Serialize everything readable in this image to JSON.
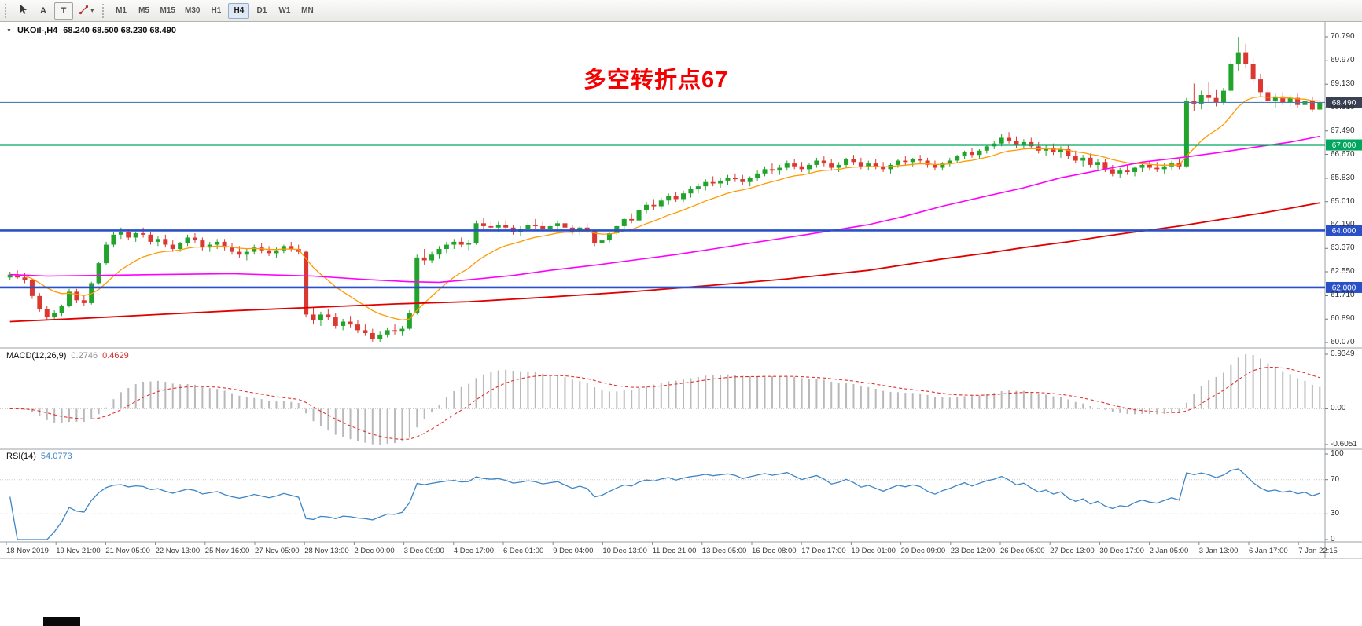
{
  "toolbar": {
    "tool_a_label": "A",
    "tool_t_label": "T",
    "timeframes": [
      "M1",
      "M5",
      "M15",
      "M30",
      "H1",
      "H4",
      "D1",
      "W1",
      "MN"
    ],
    "active_timeframe": "H4"
  },
  "icons": {
    "dropdown_caret": "▾",
    "symbol_marker": "▼"
  },
  "header": {
    "symbol_timeframe": "UKOil-,H4",
    "ohlc": "68.240 68.500 68.230 68.490"
  },
  "chart_data": {
    "type": "candlestick",
    "symbol": "UKOil-",
    "timeframe": "H4",
    "last_ohlc": {
      "open": 68.24,
      "high": 68.5,
      "low": 68.23,
      "close": 68.49
    },
    "price_axis": {
      "max": 70.79,
      "min": 60.07,
      "ticks": [
        "70.790",
        "69.970",
        "69.130",
        "68.310",
        "67.490",
        "66.670",
        "65.830",
        "65.010",
        "64.190",
        "63.370",
        "62.550",
        "61.710",
        "60.890",
        "60.070"
      ]
    },
    "time_axis": [
      "18 Nov 2019",
      "19 Nov 21:00",
      "21 Nov 05:00",
      "22 Nov 13:00",
      "25 Nov 16:00",
      "27 Nov 05:00",
      "28 Nov 13:00",
      "2 Dec 00:00",
      "3 Dec 09:00",
      "4 Dec 17:00",
      "6 Dec 01:00",
      "9 Dec 04:00",
      "10 Dec 13:00",
      "11 Dec 21:00",
      "13 Dec 05:00",
      "16 Dec 08:00",
      "17 Dec 17:00",
      "19 Dec 01:00",
      "20 Dec 09:00",
      "23 Dec 12:00",
      "26 Dec 05:00",
      "27 Dec 13:00",
      "30 Dec 17:00",
      "2 Jan 05:00",
      "3 Jan 13:00",
      "6 Jan 17:00",
      "7 Jan 22:15"
    ],
    "candles": [
      [
        62.35,
        62.55,
        62.25,
        62.45
      ],
      [
        62.45,
        62.6,
        62.3,
        62.35
      ],
      [
        62.35,
        62.5,
        62.15,
        62.25
      ],
      [
        62.25,
        62.3,
        61.6,
        61.7
      ],
      [
        61.7,
        61.8,
        61.15,
        61.25
      ],
      [
        61.25,
        61.35,
        60.85,
        60.95
      ],
      [
        60.95,
        61.2,
        60.85,
        61.1
      ],
      [
        61.1,
        61.4,
        61.0,
        61.35
      ],
      [
        61.35,
        61.95,
        61.3,
        61.85
      ],
      [
        61.85,
        61.95,
        61.45,
        61.55
      ],
      [
        61.55,
        61.7,
        61.35,
        61.45
      ],
      [
        61.45,
        62.2,
        61.4,
        62.15
      ],
      [
        62.15,
        62.9,
        62.1,
        62.85
      ],
      [
        62.85,
        63.6,
        62.8,
        63.5
      ],
      [
        63.5,
        63.95,
        63.4,
        63.85
      ],
      [
        63.85,
        64.1,
        63.7,
        63.95
      ],
      [
        63.95,
        64.05,
        63.65,
        63.75
      ],
      [
        63.75,
        63.95,
        63.6,
        63.9
      ],
      [
        63.9,
        64.1,
        63.75,
        63.85
      ],
      [
        63.85,
        63.95,
        63.5,
        63.6
      ],
      [
        63.6,
        63.8,
        63.45,
        63.7
      ],
      [
        63.7,
        63.85,
        63.4,
        63.5
      ],
      [
        63.5,
        63.65,
        63.25,
        63.35
      ],
      [
        63.35,
        63.6,
        63.25,
        63.55
      ],
      [
        63.55,
        63.85,
        63.45,
        63.75
      ],
      [
        63.75,
        63.9,
        63.55,
        63.65
      ],
      [
        63.65,
        63.75,
        63.3,
        63.4
      ],
      [
        63.4,
        63.6,
        63.25,
        63.5
      ],
      [
        63.5,
        63.7,
        63.35,
        63.6
      ],
      [
        63.6,
        63.7,
        63.3,
        63.4
      ],
      [
        63.4,
        63.55,
        63.15,
        63.25
      ],
      [
        63.25,
        63.45,
        63.05,
        63.15
      ],
      [
        63.15,
        63.35,
        62.95,
        63.25
      ],
      [
        63.25,
        63.5,
        63.15,
        63.4
      ],
      [
        63.4,
        63.55,
        63.2,
        63.3
      ],
      [
        63.3,
        63.45,
        63.1,
        63.2
      ],
      [
        63.2,
        63.4,
        63.05,
        63.3
      ],
      [
        63.3,
        63.5,
        63.2,
        63.45
      ],
      [
        63.45,
        63.6,
        63.25,
        63.35
      ],
      [
        63.35,
        63.5,
        63.15,
        63.25
      ],
      [
        63.25,
        63.3,
        60.95,
        61.05
      ],
      [
        61.05,
        61.3,
        60.7,
        60.85
      ],
      [
        60.85,
        61.15,
        60.65,
        61.05
      ],
      [
        61.05,
        61.25,
        60.85,
        60.95
      ],
      [
        60.95,
        61.1,
        60.55,
        60.65
      ],
      [
        60.65,
        60.9,
        60.5,
        60.8
      ],
      [
        60.8,
        61.0,
        60.6,
        60.7
      ],
      [
        60.7,
        60.85,
        60.4,
        60.5
      ],
      [
        60.5,
        60.7,
        60.3,
        60.4
      ],
      [
        60.4,
        60.55,
        60.1,
        60.2
      ],
      [
        60.2,
        60.45,
        60.08,
        60.35
      ],
      [
        60.35,
        60.6,
        60.25,
        60.5
      ],
      [
        60.5,
        60.7,
        60.35,
        60.45
      ],
      [
        60.45,
        60.65,
        60.3,
        60.55
      ],
      [
        60.55,
        61.2,
        60.5,
        61.1
      ],
      [
        61.1,
        63.15,
        61.05,
        63.05
      ],
      [
        63.05,
        63.35,
        62.8,
        62.95
      ],
      [
        62.95,
        63.25,
        62.85,
        63.15
      ],
      [
        63.15,
        63.45,
        63.0,
        63.35
      ],
      [
        63.35,
        63.6,
        63.2,
        63.5
      ],
      [
        63.5,
        63.7,
        63.35,
        63.6
      ],
      [
        63.6,
        63.75,
        63.4,
        63.5
      ],
      [
        63.5,
        63.65,
        63.3,
        63.55
      ],
      [
        63.55,
        64.35,
        63.5,
        64.25
      ],
      [
        64.25,
        64.45,
        64.05,
        64.15
      ],
      [
        64.15,
        64.3,
        63.95,
        64.1
      ],
      [
        64.1,
        64.3,
        63.95,
        64.2
      ],
      [
        64.2,
        64.35,
        64.0,
        64.1
      ],
      [
        64.1,
        64.2,
        63.85,
        63.95
      ],
      [
        63.95,
        64.15,
        63.8,
        64.05
      ],
      [
        64.05,
        64.3,
        63.95,
        64.2
      ],
      [
        64.2,
        64.4,
        64.05,
        64.15
      ],
      [
        64.15,
        64.3,
        63.95,
        64.05
      ],
      [
        64.05,
        64.25,
        63.9,
        64.15
      ],
      [
        64.15,
        64.35,
        64.0,
        64.25
      ],
      [
        64.25,
        64.4,
        64.05,
        64.1
      ],
      [
        64.1,
        64.2,
        63.85,
        63.95
      ],
      [
        63.95,
        64.15,
        63.85,
        64.1
      ],
      [
        64.1,
        64.25,
        63.9,
        64.0
      ],
      [
        64.0,
        64.05,
        63.45,
        63.55
      ],
      [
        63.55,
        63.75,
        63.4,
        63.65
      ],
      [
        63.65,
        63.95,
        63.55,
        63.9
      ],
      [
        63.9,
        64.2,
        63.85,
        64.15
      ],
      [
        64.15,
        64.45,
        64.05,
        64.4
      ],
      [
        64.4,
        64.6,
        64.25,
        64.35
      ],
      [
        64.35,
        64.75,
        64.3,
        64.7
      ],
      [
        64.7,
        65.0,
        64.6,
        64.9
      ],
      [
        64.9,
        65.1,
        64.7,
        64.85
      ],
      [
        64.85,
        65.15,
        64.75,
        65.05
      ],
      [
        65.05,
        65.3,
        64.9,
        65.2
      ],
      [
        65.2,
        65.35,
        65.0,
        65.1
      ],
      [
        65.1,
        65.4,
        65.0,
        65.3
      ],
      [
        65.3,
        65.55,
        65.15,
        65.45
      ],
      [
        65.45,
        65.65,
        65.3,
        65.55
      ],
      [
        65.55,
        65.8,
        65.4,
        65.7
      ],
      [
        65.7,
        65.9,
        65.55,
        65.65
      ],
      [
        65.65,
        65.85,
        65.5,
        65.75
      ],
      [
        65.75,
        65.95,
        65.6,
        65.85
      ],
      [
        65.85,
        66.0,
        65.7,
        65.8
      ],
      [
        65.8,
        65.95,
        65.6,
        65.7
      ],
      [
        65.7,
        65.9,
        65.55,
        65.85
      ],
      [
        65.85,
        66.1,
        65.75,
        66.0
      ],
      [
        66.0,
        66.25,
        65.9,
        66.15
      ],
      [
        66.15,
        66.35,
        66.0,
        66.1
      ],
      [
        66.1,
        66.3,
        65.95,
        66.2
      ],
      [
        66.2,
        66.45,
        66.1,
        66.35
      ],
      [
        66.35,
        66.5,
        66.15,
        66.25
      ],
      [
        66.25,
        66.4,
        66.05,
        66.15
      ],
      [
        66.15,
        66.35,
        66.0,
        66.3
      ],
      [
        66.3,
        66.55,
        66.2,
        66.45
      ],
      [
        66.45,
        66.6,
        66.25,
        66.35
      ],
      [
        66.35,
        66.5,
        66.1,
        66.2
      ],
      [
        66.2,
        66.4,
        66.05,
        66.3
      ],
      [
        66.3,
        66.55,
        66.2,
        66.5
      ],
      [
        66.5,
        66.65,
        66.3,
        66.4
      ],
      [
        66.4,
        66.55,
        66.15,
        66.25
      ],
      [
        66.25,
        66.45,
        66.1,
        66.35
      ],
      [
        66.35,
        66.5,
        66.15,
        66.25
      ],
      [
        66.25,
        66.4,
        66.05,
        66.15
      ],
      [
        66.15,
        66.35,
        66.0,
        66.3
      ],
      [
        66.3,
        66.5,
        66.2,
        66.45
      ],
      [
        66.45,
        66.6,
        66.3,
        66.4
      ],
      [
        66.4,
        66.55,
        66.25,
        66.5
      ],
      [
        66.5,
        66.65,
        66.35,
        66.45
      ],
      [
        66.45,
        66.55,
        66.2,
        66.3
      ],
      [
        66.3,
        66.45,
        66.1,
        66.2
      ],
      [
        66.2,
        66.4,
        66.1,
        66.35
      ],
      [
        66.35,
        66.55,
        66.25,
        66.45
      ],
      [
        66.45,
        66.65,
        66.35,
        66.6
      ],
      [
        66.6,
        66.8,
        66.5,
        66.75
      ],
      [
        66.75,
        66.9,
        66.55,
        66.65
      ],
      [
        66.65,
        66.85,
        66.5,
        66.8
      ],
      [
        66.8,
        67.0,
        66.7,
        66.95
      ],
      [
        66.95,
        67.15,
        66.85,
        67.05
      ],
      [
        67.05,
        67.4,
        66.95,
        67.25
      ],
      [
        67.25,
        67.45,
        67.05,
        67.15
      ],
      [
        67.15,
        67.3,
        66.9,
        67.0
      ],
      [
        67.0,
        67.2,
        66.85,
        67.1
      ],
      [
        67.1,
        67.25,
        66.9,
        66.95
      ],
      [
        66.95,
        67.1,
        66.7,
        66.8
      ],
      [
        66.8,
        67.0,
        66.6,
        66.9
      ],
      [
        66.9,
        67.05,
        66.65,
        66.75
      ],
      [
        66.75,
        66.95,
        66.55,
        66.85
      ],
      [
        66.85,
        67.0,
        66.5,
        66.6
      ],
      [
        66.6,
        66.8,
        66.35,
        66.45
      ],
      [
        66.45,
        66.65,
        66.25,
        66.55
      ],
      [
        66.55,
        66.7,
        66.2,
        66.3
      ],
      [
        66.3,
        66.5,
        66.1,
        66.4
      ],
      [
        66.4,
        66.5,
        66.05,
        66.15
      ],
      [
        66.15,
        66.3,
        65.9,
        66.0
      ],
      [
        66.0,
        66.2,
        65.85,
        66.1
      ],
      [
        66.1,
        66.3,
        65.95,
        66.05
      ],
      [
        66.05,
        66.25,
        65.9,
        66.2
      ],
      [
        66.2,
        66.4,
        66.05,
        66.3
      ],
      [
        66.3,
        66.45,
        66.1,
        66.2
      ],
      [
        66.2,
        66.4,
        66.05,
        66.15
      ],
      [
        66.15,
        66.35,
        66.0,
        66.25
      ],
      [
        66.25,
        66.45,
        66.1,
        66.35
      ],
      [
        66.35,
        66.5,
        66.15,
        66.25
      ],
      [
        66.25,
        68.65,
        66.2,
        68.55
      ],
      [
        68.55,
        69.15,
        68.2,
        68.45
      ],
      [
        68.45,
        68.9,
        68.25,
        68.75
      ],
      [
        68.75,
        69.2,
        68.5,
        68.65
      ],
      [
        68.65,
        68.95,
        68.35,
        68.5
      ],
      [
        68.5,
        69.0,
        68.4,
        68.9
      ],
      [
        68.9,
        70.0,
        68.8,
        69.85
      ],
      [
        69.85,
        70.79,
        69.6,
        70.25
      ],
      [
        70.25,
        70.55,
        69.7,
        69.85
      ],
      [
        69.85,
        70.05,
        69.15,
        69.3
      ],
      [
        69.3,
        69.5,
        68.7,
        68.85
      ],
      [
        68.85,
        69.05,
        68.4,
        68.55
      ],
      [
        68.55,
        68.8,
        68.3,
        68.7
      ],
      [
        68.7,
        68.85,
        68.4,
        68.5
      ],
      [
        68.5,
        68.75,
        68.35,
        68.65
      ],
      [
        68.65,
        68.8,
        68.3,
        68.4
      ],
      [
        68.4,
        68.6,
        68.2,
        68.55
      ],
      [
        68.55,
        68.7,
        68.18,
        68.24
      ],
      [
        68.24,
        68.5,
        68.23,
        68.49
      ]
    ],
    "moving_averages": {
      "fast": {
        "method": "ema_of_closes",
        "period": 13,
        "color": "#ff9a00"
      },
      "mid": {
        "color": "#ff00ff",
        "waypoints": [
          [
            0,
            62.45
          ],
          [
            5,
            62.4
          ],
          [
            12,
            62.42
          ],
          [
            20,
            62.45
          ],
          [
            30,
            62.48
          ],
          [
            41,
            62.4
          ],
          [
            48,
            62.28
          ],
          [
            54,
            62.2
          ],
          [
            58,
            62.18
          ],
          [
            62,
            62.27
          ],
          [
            68,
            62.42
          ],
          [
            73,
            62.6
          ],
          [
            79,
            62.78
          ],
          [
            84,
            62.95
          ],
          [
            90,
            63.15
          ],
          [
            95,
            63.35
          ],
          [
            100,
            63.55
          ],
          [
            105,
            63.75
          ],
          [
            110,
            63.95
          ],
          [
            116,
            64.2
          ],
          [
            121,
            64.5
          ],
          [
            126,
            64.85
          ],
          [
            131,
            65.15
          ],
          [
            137,
            65.5
          ],
          [
            142,
            65.85
          ],
          [
            148,
            66.15
          ],
          [
            153,
            66.4
          ],
          [
            158,
            66.55
          ],
          [
            163,
            66.72
          ],
          [
            169,
            66.95
          ],
          [
            173,
            67.1
          ],
          [
            177,
            67.3
          ]
        ]
      },
      "slow": {
        "color": "#e00000",
        "waypoints": [
          [
            0,
            60.8
          ],
          [
            10,
            60.92
          ],
          [
            20,
            61.05
          ],
          [
            30,
            61.18
          ],
          [
            41,
            61.3
          ],
          [
            52,
            61.42
          ],
          [
            62,
            61.5
          ],
          [
            72,
            61.65
          ],
          [
            84,
            61.85
          ],
          [
            95,
            62.08
          ],
          [
            105,
            62.3
          ],
          [
            116,
            62.6
          ],
          [
            126,
            63.0
          ],
          [
            132,
            63.2
          ],
          [
            137,
            63.4
          ],
          [
            143,
            63.6
          ],
          [
            148,
            63.8
          ],
          [
            153,
            63.98
          ],
          [
            158,
            64.15
          ],
          [
            164,
            64.4
          ],
          [
            169,
            64.6
          ],
          [
            173,
            64.78
          ],
          [
            177,
            64.97
          ]
        ]
      }
    },
    "hlines": [
      {
        "price": 68.49,
        "label": "68.490",
        "line_color": "#4a7eb5",
        "badge_color": "#3a4154",
        "width": 1.2
      },
      {
        "price": 67.0,
        "label": "67.000",
        "line_color": "#00a65e",
        "badge_color": "#00a65e",
        "width": 2.2
      },
      {
        "price": 64.0,
        "label": "64.000",
        "line_color": "#2a50c8",
        "badge_color": "#2a50c8",
        "width": 2.6
      },
      {
        "price": 62.0,
        "label": "62.000",
        "line_color": "#2a50c8",
        "badge_color": "#2a50c8",
        "width": 2.6
      }
    ],
    "annotation": {
      "text": "多空转折点67",
      "color": "#f40000"
    },
    "macd": {
      "label": "MACD(12,26,9)",
      "main_value": "0.2746",
      "signal_value": "0.4629",
      "params": [
        12,
        26,
        9
      ],
      "ticks": [
        "0.9349",
        "0.00",
        "-0.6051"
      ],
      "hist_color": "#b9b9b9",
      "signal_color": "#e03030"
    },
    "rsi": {
      "label": "RSI(14)",
      "value": "54.0773",
      "period": 14,
      "ticks": [
        "100",
        "70",
        "30",
        "0"
      ],
      "levels": [
        70,
        30
      ],
      "color": "#3d85c6"
    },
    "colors": {
      "up": "#22a32b",
      "down": "#dc3832",
      "background": "#ffffff",
      "panel_border": "#9aa0a6",
      "axis_text": "#2d2d2d"
    }
  }
}
